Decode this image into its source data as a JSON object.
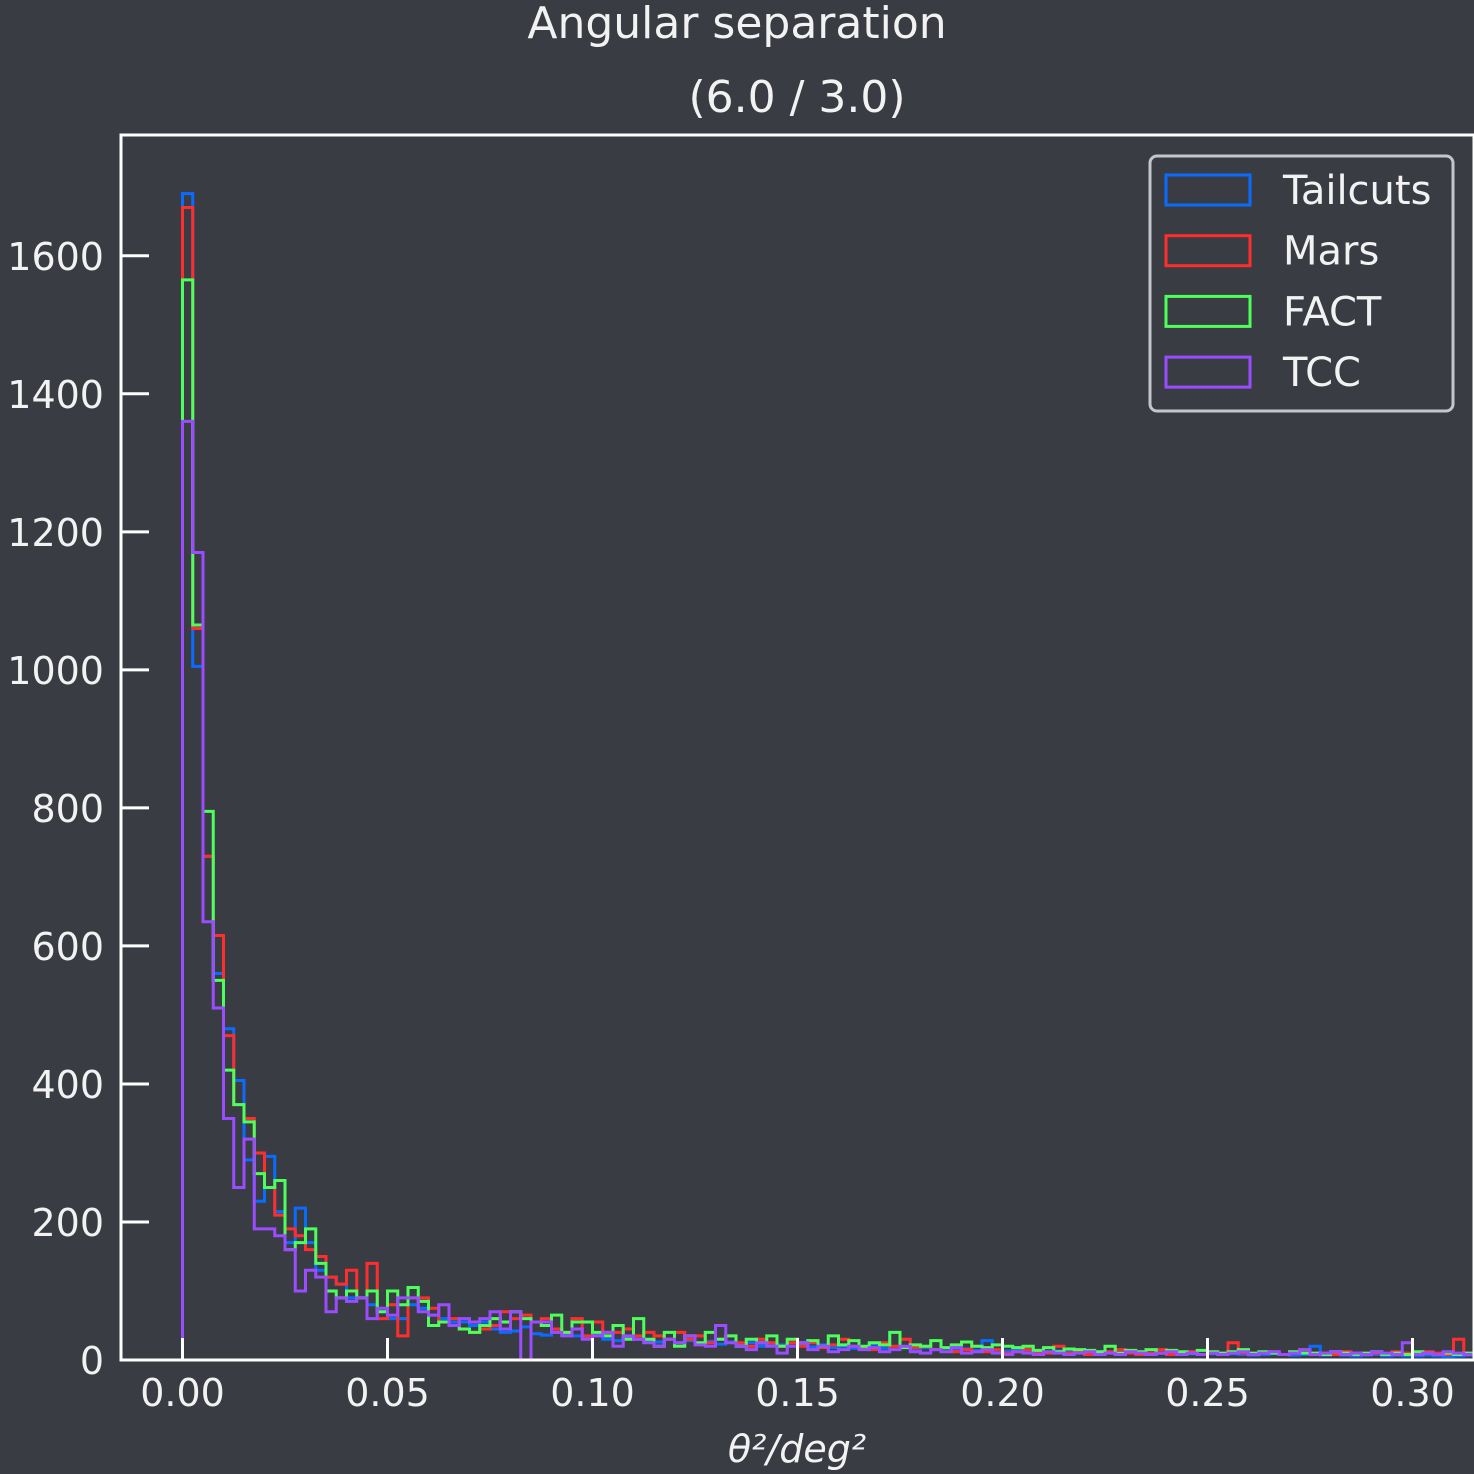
{
  "colors": {
    "background": "#393c42",
    "axes": "#ffffff",
    "text": "#f2f2f2",
    "tailcuts": "#0a6cff",
    "mars": "#ff2e2e",
    "fact": "#4dff5a",
    "tcc": "#9a4dff"
  },
  "chart_data": {
    "type": "histogram",
    "title": "Angular separation",
    "subtitle": "(6.0 / 3.0)",
    "xlabel": "θ²/deg²",
    "ylabel": "",
    "xlim": [
      -0.015,
      0.315
    ],
    "ylim": [
      0,
      1775
    ],
    "bin_width": 0.0025,
    "x_start": 0.0,
    "x_ticks": [
      "0.00",
      "0.05",
      "0.10",
      "0.15",
      "0.20",
      "0.25",
      "0.30"
    ],
    "y_ticks": [
      "0",
      "200",
      "400",
      "600",
      "800",
      "1000",
      "1200",
      "1400",
      "1600"
    ],
    "grid": false,
    "legend_position": "top-right",
    "series": [
      {
        "name": "Tailcuts",
        "color": "#0a6cff",
        "values": [
          1690,
          1005,
          730,
          560,
          480,
          405,
          290,
          230,
          295,
          215,
          170,
          220,
          170,
          130,
          120,
          110,
          90,
          90,
          80,
          70,
          60,
          60,
          80,
          75,
          65,
          60,
          55,
          55,
          50,
          55,
          45,
          40,
          42,
          48,
          38,
          36,
          40,
          38,
          35,
          32,
          36,
          30,
          28,
          32,
          30,
          28,
          26,
          30,
          25,
          28,
          24,
          27,
          23,
          26,
          22,
          25,
          20,
          23,
          22,
          20,
          21,
          19,
          22,
          18,
          20,
          17,
          19,
          23,
          17,
          40,
          18,
          16,
          18,
          15,
          17,
          15,
          16,
          14,
          28,
          14,
          13,
          15,
          12,
          14,
          12,
          13,
          11,
          12,
          10,
          12,
          11,
          10,
          11,
          10,
          9,
          10,
          9,
          10,
          9,
          8,
          9,
          8,
          9,
          8,
          7,
          8,
          9,
          8,
          7,
          8,
          20,
          7,
          8,
          7,
          6,
          7,
          8,
          6,
          7,
          6,
          6,
          7,
          6,
          5,
          6,
          7,
          5,
          6,
          5,
          6
        ]
      },
      {
        "name": "Mars",
        "color": "#ff2e2e",
        "values": [
          1670,
          1060,
          730,
          615,
          470,
          370,
          350,
          300,
          250,
          210,
          190,
          180,
          160,
          150,
          120,
          110,
          130,
          90,
          140,
          60,
          80,
          35,
          90,
          90,
          75,
          55,
          60,
          45,
          40,
          45,
          50,
          70,
          60,
          65,
          55,
          60,
          45,
          40,
          60,
          35,
          55,
          40,
          40,
          45,
          35,
          40,
          35,
          30,
          40,
          30,
          35,
          25,
          30,
          35,
          25,
          20,
          30,
          25,
          20,
          25,
          20,
          25,
          18,
          22,
          30,
          20,
          18,
          15,
          25,
          20,
          30,
          18,
          20,
          15,
          18,
          12,
          15,
          20,
          12,
          15,
          10,
          12,
          15,
          12,
          10,
          20,
          10,
          12,
          8,
          10,
          12,
          15,
          10,
          8,
          10,
          15,
          8,
          10,
          12,
          8,
          10,
          8,
          25,
          10,
          8,
          10,
          12,
          8,
          10,
          15,
          8,
          10,
          8,
          12,
          10,
          8,
          10,
          8,
          12,
          10,
          8,
          12,
          10,
          8,
          30,
          10,
          8,
          12,
          8,
          12
        ]
      },
      {
        "name": "FACT",
        "color": "#4dff5a",
        "values": [
          1565,
          1065,
          795,
          550,
          420,
          370,
          345,
          270,
          250,
          260,
          160,
          170,
          190,
          140,
          100,
          90,
          100,
          90,
          100,
          70,
          100,
          80,
          105,
          85,
          50,
          55,
          50,
          45,
          40,
          50,
          60,
          55,
          70,
          60,
          55,
          50,
          65,
          40,
          55,
          55,
          40,
          35,
          50,
          30,
          60,
          30,
          20,
          40,
          20,
          35,
          25,
          40,
          30,
          35,
          20,
          30,
          25,
          35,
          20,
          30,
          25,
          28,
          20,
          35,
          22,
          28,
          20,
          25,
          22,
          40,
          18,
          22,
          20,
          28,
          18,
          22,
          26,
          20,
          18,
          22,
          20,
          18,
          20,
          14,
          18,
          12,
          16,
          15,
          14,
          12,
          20,
          10,
          14,
          12,
          15,
          10,
          14,
          12,
          10,
          14,
          12,
          10,
          12,
          15,
          10,
          12,
          10,
          8,
          12,
          10,
          10,
          8,
          12,
          10,
          8,
          10,
          12,
          8,
          10,
          8,
          12,
          10,
          8,
          10,
          8,
          10,
          8,
          12,
          10,
          15
        ]
      },
      {
        "name": "TCC",
        "color": "#9a4dff",
        "values": [
          1360,
          1170,
          635,
          510,
          350,
          250,
          320,
          190,
          190,
          180,
          160,
          100,
          130,
          120,
          70,
          90,
          85,
          90,
          60,
          75,
          65,
          90,
          90,
          70,
          65,
          80,
          50,
          60,
          55,
          60,
          70,
          45,
          70,
          0,
          55,
          55,
          40,
          35,
          45,
          30,
          35,
          40,
          20,
          35,
          30,
          25,
          20,
          30,
          25,
          35,
          22,
          20,
          50,
          25,
          20,
          15,
          25,
          20,
          10,
          20,
          25,
          15,
          20,
          12,
          15,
          20,
          15,
          18,
          12,
          15,
          20,
          12,
          10,
          15,
          12,
          18,
          10,
          12,
          15,
          10,
          8,
          12,
          10,
          8,
          12,
          10,
          8,
          10,
          12,
          8,
          10,
          8,
          12,
          10,
          8,
          10,
          12,
          8,
          10,
          8,
          10,
          8,
          10,
          12,
          8,
          10,
          12,
          8,
          10,
          15,
          8,
          10,
          12,
          8,
          10,
          8,
          12,
          10,
          8,
          25,
          8,
          10,
          8,
          12,
          10,
          8,
          10,
          8,
          10,
          8
        ]
      }
    ]
  }
}
